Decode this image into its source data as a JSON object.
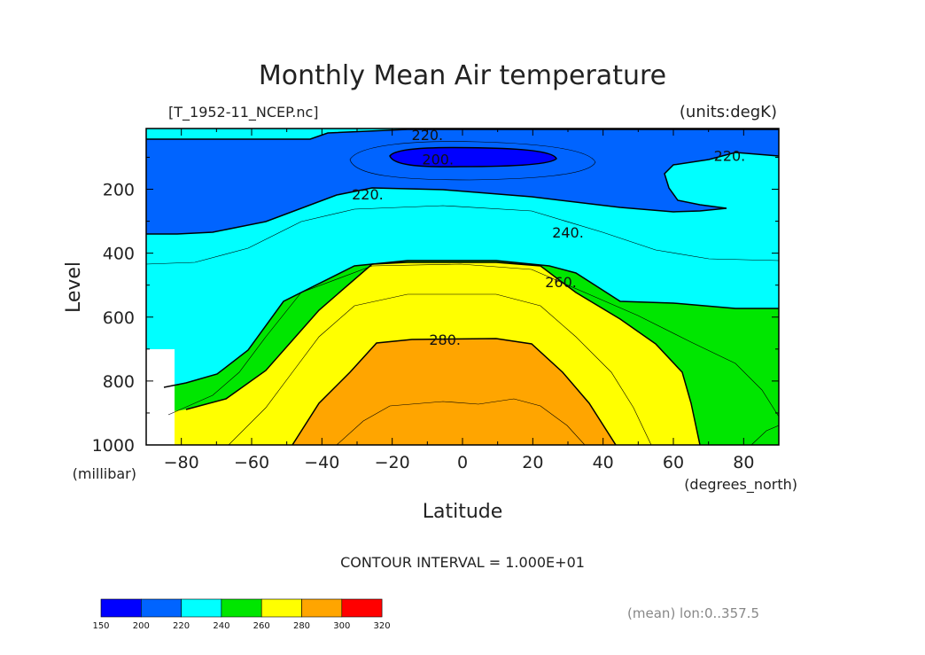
{
  "chart_data": {
    "type": "contour",
    "title": "Monthly Mean Air temperature",
    "file_label": "[T_1952-11_NCEP.nc]",
    "units_label": "(units:degK)",
    "xlabel": "Latitude",
    "ylabel": "Level",
    "x_units": "(degrees_north)",
    "y_units": "(millibar)",
    "xlim": [
      -90,
      90
    ],
    "ylim": [
      1000,
      10
    ],
    "x_ticks": [
      -80,
      -60,
      -40,
      -20,
      0,
      20,
      40,
      60,
      80
    ],
    "x_tick_labels": [
      "−80",
      "−60",
      "−40",
      "−20",
      "0",
      "20",
      "40",
      "60",
      "80"
    ],
    "y_ticks": [
      200,
      400,
      600,
      800,
      1000
    ],
    "y_tick_labels": [
      "200",
      "400",
      "600",
      "800",
      "1000"
    ],
    "contour_labels": [
      {
        "text": "200.",
        "x": -7,
        "y": 105
      },
      {
        "text": "220.",
        "x": -10,
        "y": 30
      },
      {
        "text": "220.",
        "x": -27,
        "y": 215
      },
      {
        "text": "220.",
        "x": 76,
        "y": 95
      },
      {
        "text": "240.",
        "x": 30,
        "y": 335
      },
      {
        "text": "260.",
        "x": 28,
        "y": 490
      },
      {
        "text": "280.",
        "x": -5,
        "y": 670
      }
    ],
    "contour_interval": "CONTOUR INTERVAL = 1.000E+01",
    "footer_note": "(mean) lon:0..357.5",
    "colorbar": {
      "levels": [
        "150",
        "200",
        "220",
        "240",
        "260",
        "280",
        "300",
        "320"
      ],
      "colors": [
        "#0000ff",
        "#0064ff",
        "#00ffff",
        "#00e600",
        "#ffff00",
        "#ffa500",
        "#ff0000"
      ]
    }
  }
}
